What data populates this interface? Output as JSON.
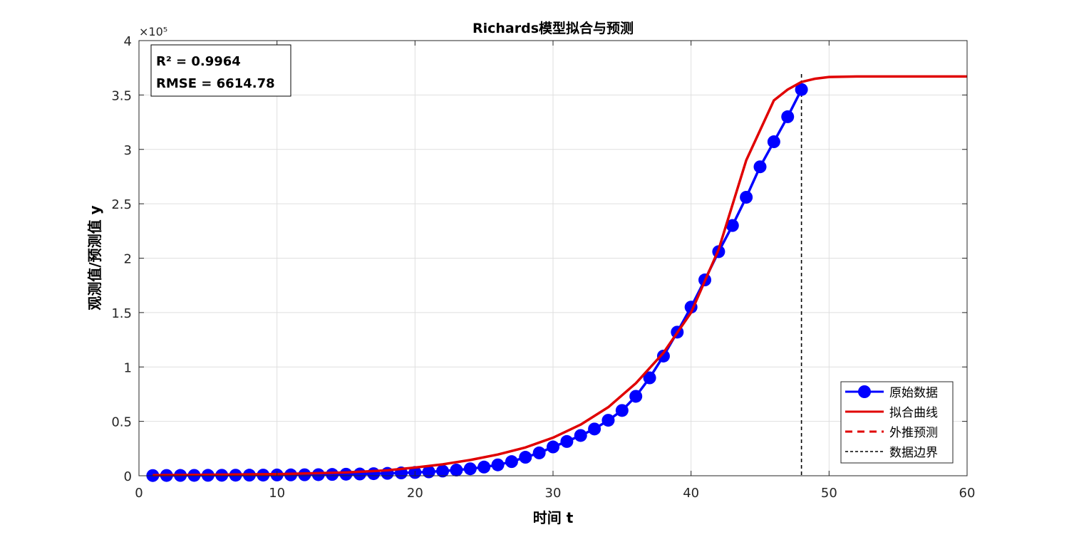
{
  "chart_data": {
    "type": "line",
    "title": "Richards模型拟合与预测",
    "xlabel": "时间 t",
    "ylabel": "观测值/预测值 y",
    "xlim": [
      0,
      60
    ],
    "ylim": [
      0,
      400000
    ],
    "x_ticks": [
      0,
      10,
      20,
      30,
      40,
      50,
      60
    ],
    "y_ticks": [
      0,
      50000,
      100000,
      150000,
      200000,
      250000,
      300000,
      350000,
      400000
    ],
    "y_tick_labels": [
      "0",
      "0.5",
      "1",
      "1.5",
      "2",
      "2.5",
      "3",
      "3.5",
      "4"
    ],
    "y_exponent_label": "×10⁵",
    "grid": true,
    "legend_position": "bottom-right",
    "annotation": {
      "lines": [
        "R² = 0.9964",
        "RMSE = 6614.78"
      ],
      "position": "top-left"
    },
    "series": [
      {
        "name": "原始数据",
        "style": "line-markers",
        "color": "#0000ff",
        "x": [
          1,
          2,
          3,
          4,
          5,
          6,
          7,
          8,
          9,
          10,
          11,
          12,
          13,
          14,
          15,
          16,
          17,
          18,
          19,
          20,
          21,
          22,
          23,
          24,
          25,
          26,
          27,
          28,
          29,
          30,
          31,
          32,
          33,
          34,
          35,
          36,
          37,
          38,
          39,
          40,
          41,
          42,
          43,
          44,
          45,
          46,
          47,
          48
        ],
        "values": [
          200,
          250,
          300,
          350,
          400,
          450,
          500,
          550,
          600,
          700,
          800,
          900,
          1000,
          1200,
          1400,
          1600,
          1900,
          2200,
          2600,
          3000,
          3600,
          4300,
          5200,
          6400,
          8000,
          10000,
          13000,
          17000,
          21000,
          26500,
          31500,
          37000,
          43000,
          51000,
          60000,
          73000,
          90000,
          110000,
          132000,
          155000,
          180000,
          206000,
          230000,
          256000,
          284000,
          307000,
          330000,
          355000
        ]
      },
      {
        "name": "拟合曲线",
        "style": "solid",
        "color": "#e00000",
        "x": [
          1,
          5,
          10,
          15,
          18,
          20,
          22,
          24,
          26,
          28,
          30,
          32,
          34,
          36,
          38,
          40,
          42,
          44,
          46,
          47,
          48
        ],
        "values": [
          600,
          900,
          1500,
          3000,
          5000,
          7500,
          10500,
          14500,
          19500,
          26000,
          35000,
          47000,
          63000,
          85000,
          113000,
          150000,
          208000,
          290000,
          345000,
          355000,
          362000
        ]
      },
      {
        "name": "外推预测",
        "style": "dashed",
        "color": "#e00000",
        "x": [
          48,
          49,
          50,
          52,
          54,
          56,
          58,
          60
        ],
        "values": [
          362000,
          365000,
          366500,
          367000,
          367000,
          367000,
          367000,
          367000
        ]
      },
      {
        "name": "数据边界",
        "style": "vline-dashed",
        "color": "#000000",
        "x": [
          48
        ]
      }
    ]
  }
}
